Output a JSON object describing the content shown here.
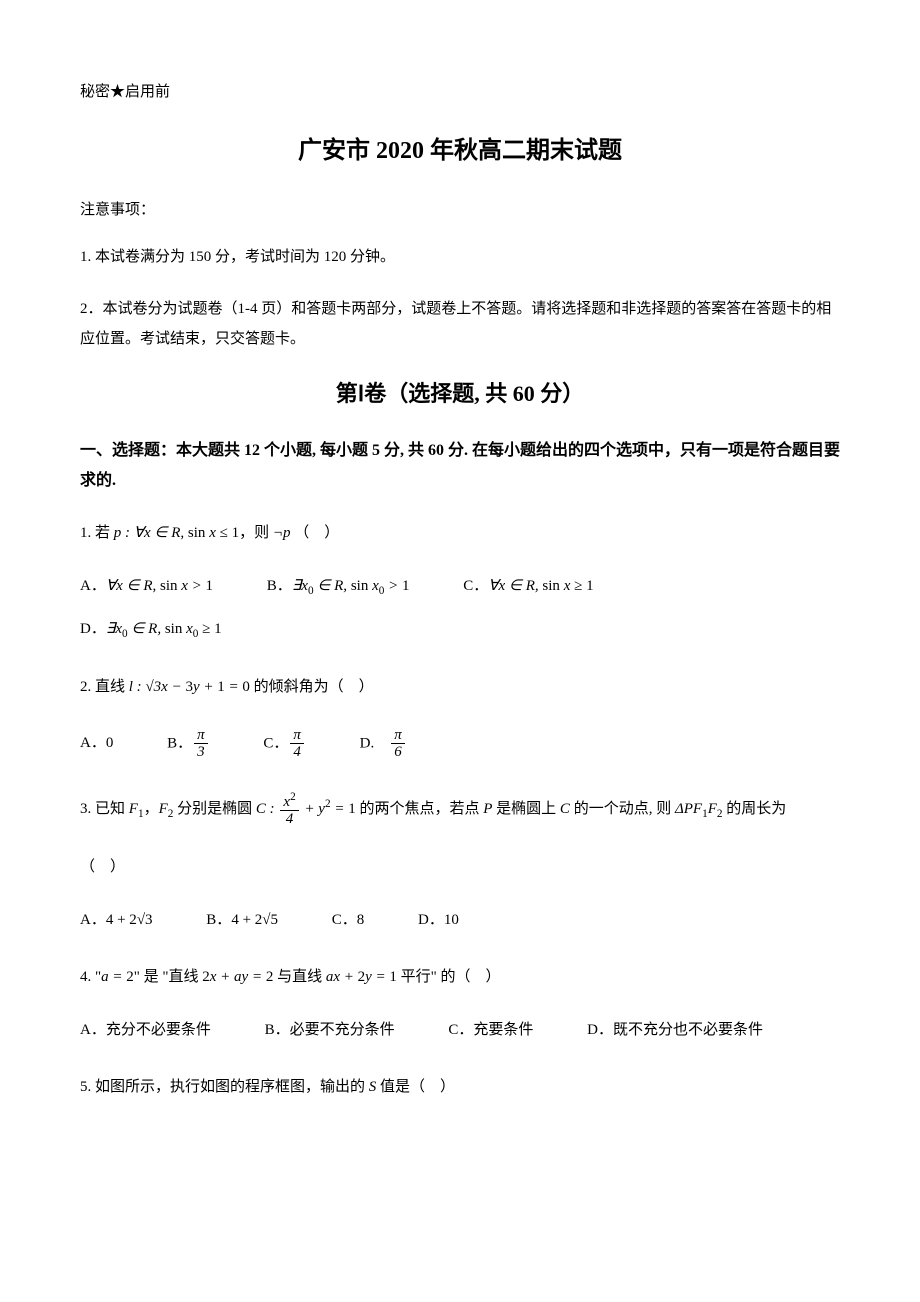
{
  "confidential": "秘密★启用前",
  "title": "广安市 2020 年秋高二期末试题",
  "noticeHeader": "注意事项：",
  "notice1": "1. 本试卷满分为 150 分，考试时间为 120 分钟。",
  "notice2": "2．本试卷分为试题卷（1-4 页）和答题卡两部分，试题卷上不答题。请将选择题和非选择题的答案答在答题卡的相应位置。考试结束，只交答题卡。",
  "sectionTitle": "第Ⅰ卷（选择题, 共 60 分）",
  "sectionDesc": "一、选择题：本大题共 12 个小题, 每小题 5 分, 共 60 分. 在每小题给出的四个选项中，只有一项是符合题目要求的.",
  "q1": {
    "prefix": "1. 若 ",
    "suffix": "，则 ",
    "paren": "（　）",
    "A": "A．",
    "B": "B．",
    "C": "C．",
    "D": "D．"
  },
  "q2": {
    "prefix": "2. 直线 ",
    "suffix": " 的倾斜角为（　）",
    "A": "A．0",
    "B": "B．",
    "C": "C．",
    "D": "D."
  },
  "q3": {
    "prefix": "3. 已知 ",
    "mid1": "，",
    "mid2": " 分别是椭圆 ",
    "mid3": " 的两个焦点，若点 ",
    "mid4": " 是椭圆上 ",
    "mid5": " 的一个动点, 则 ",
    "suffix": " 的周长为",
    "paren": "（　）",
    "A": "A．",
    "B": "B．",
    "C": "C．8",
    "D": "D．10"
  },
  "q4": {
    "prefix": "4. \"",
    "mid1": "\" 是 \"直线 ",
    "mid2": " 与直线 ",
    "suffix": " 平行\" 的（　）",
    "A": "A．充分不必要条件",
    "B": "B．必要不充分条件",
    "C": "C．充要条件",
    "D": "D．既不充分也不必要条件"
  },
  "q5": {
    "text": "5. 如图所示，执行如图的程序框图，输出的 ",
    "suffix": " 值是（　）"
  }
}
